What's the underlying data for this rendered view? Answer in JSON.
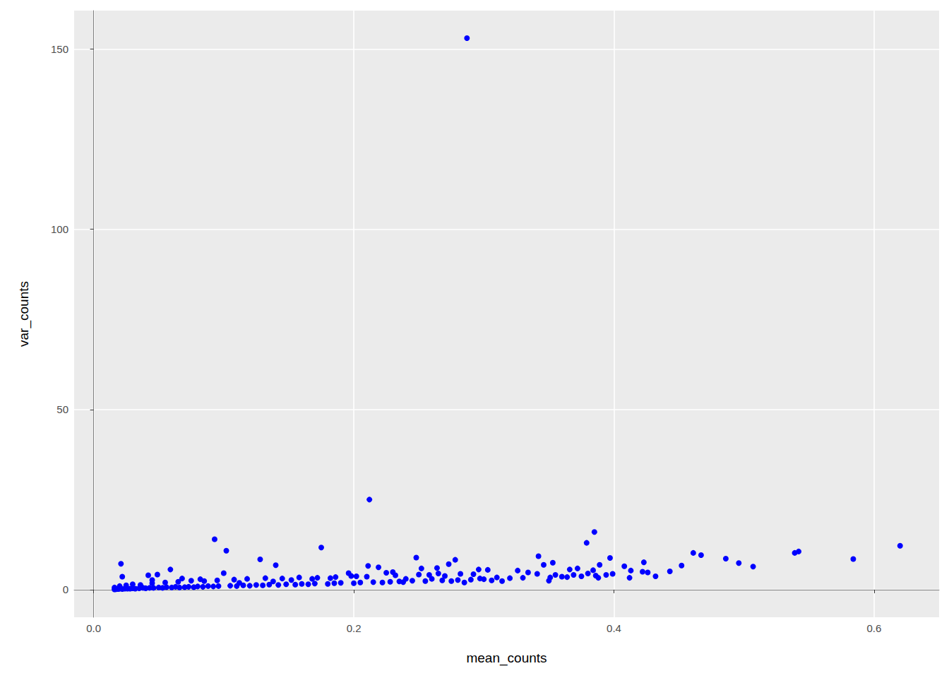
{
  "chart_data": {
    "type": "scatter",
    "x_label": "mean_counts",
    "y_label": "var_counts",
    "color": "#0000ff",
    "marker": "circle",
    "grid": true,
    "xlim": [
      -0.015,
      0.65
    ],
    "xticks": [
      {
        "value": 0,
        "label": "0.0"
      },
      0.2,
      0.4,
      0.6
    ],
    "ylim": [
      -7.65,
      160.65
    ],
    "yticks": [
      0,
      50,
      100,
      150
    ],
    "x": [
      0.287,
      0.212,
      0.385,
      0.093,
      0.379,
      0.62,
      0.175,
      0.102,
      0.542,
      0.539,
      0.461,
      0.467,
      0.342,
      0.397,
      0.248,
      0.486,
      0.584,
      0.278,
      0.128,
      0.496,
      0.423,
      0.021,
      0.14,
      0.507,
      0.452,
      0.389,
      0.211,
      0.273,
      0.219,
      0.408,
      0.353,
      0.346,
      0.059,
      0.264,
      0.296,
      0.303,
      0.252,
      0.372,
      0.366,
      0.384,
      0.422,
      0.413,
      0.326,
      0.334,
      0.443,
      0.1,
      0.196,
      0.049,
      0.042,
      0.022,
      0.341,
      0.355,
      0.394,
      0.399,
      0.412,
      0.432,
      0.426,
      0.375,
      0.36,
      0.364,
      0.33,
      0.31,
      0.306,
      0.314,
      0.32,
      0.35,
      0.351,
      0.388,
      0.386,
      0.369,
      0.38,
      0.297,
      0.29,
      0.285,
      0.282,
      0.27,
      0.26,
      0.24,
      0.23,
      0.225,
      0.245,
      0.235,
      0.25,
      0.265,
      0.275,
      0.016,
      0.017,
      0.018,
      0.019,
      0.02,
      0.022,
      0.024,
      0.026,
      0.028,
      0.03,
      0.032,
      0.035,
      0.038,
      0.04,
      0.043,
      0.046,
      0.05,
      0.053,
      0.056,
      0.06,
      0.063,
      0.066,
      0.07,
      0.073,
      0.077,
      0.08,
      0.084,
      0.088,
      0.092,
      0.096,
      0.105,
      0.11,
      0.115,
      0.12,
      0.125,
      0.13,
      0.135,
      0.142,
      0.148,
      0.155,
      0.16,
      0.165,
      0.17,
      0.18,
      0.185,
      0.19,
      0.2,
      0.205,
      0.215,
      0.222,
      0.228,
      0.238,
      0.255,
      0.268,
      0.28,
      0.3,
      0.016,
      0.02,
      0.025,
      0.03,
      0.036,
      0.045,
      0.055,
      0.065,
      0.075,
      0.085,
      0.095,
      0.108,
      0.118,
      0.132,
      0.145,
      0.158,
      0.172,
      0.186,
      0.198,
      0.21,
      0.232,
      0.258,
      0.292,
      0.045,
      0.068,
      0.082,
      0.112,
      0.138,
      0.152,
      0.168,
      0.182,
      0.202
    ],
    "values": [
      153,
      25,
      16,
      14,
      13,
      12.2,
      11.7,
      10.8,
      10.6,
      10.2,
      10.2,
      9.6,
      9.3,
      8.8,
      8.9,
      8.6,
      8.5,
      8.3,
      8.4,
      7.4,
      7.6,
      7.2,
      6.8,
      6.4,
      6.7,
      6.9,
      6.6,
      7.1,
      6.2,
      6.5,
      7.5,
      6.9,
      5.6,
      6,
      5.6,
      5.5,
      5.9,
      5.9,
      5.6,
      5.4,
      5,
      5.3,
      5.3,
      4.8,
      5.1,
      4.6,
      4.6,
      4.2,
      4,
      3.6,
      4.4,
      4.1,
      4.1,
      4.4,
      3.3,
      3.7,
      4.8,
      3.7,
      3.6,
      3.5,
      3.3,
      3.4,
      2.6,
      2.4,
      3.2,
      2.5,
      3.4,
      3.3,
      3.9,
      4.1,
      4.5,
      3.1,
      2.8,
      2,
      4.4,
      3.8,
      3,
      3,
      4.9,
      4.7,
      2.5,
      2.3,
      4.2,
      4.5,
      2.4,
      0.1,
      0.15,
      0.2,
      0.2,
      0.3,
      0.2,
      0.3,
      0.3,
      0.3,
      0.4,
      0.3,
      0.4,
      0.5,
      0.4,
      0.5,
      0.5,
      0.6,
      0.5,
      0.7,
      0.6,
      0.8,
      0.6,
      0.7,
      0.8,
      0.7,
      0.9,
      0.8,
      1,
      0.9,
      1,
      1.1,
      1,
      1.2,
      1.1,
      1.3,
      1.2,
      1.4,
      1.3,
      1.5,
      1.4,
      1.6,
      1.5,
      1.7,
      1.6,
      1.8,
      1.9,
      1.8,
      2,
      2.1,
      2,
      2.2,
      2.1,
      2.4,
      2.6,
      2.7,
      2.9,
      0.6,
      1,
      1.2,
      1.5,
      1.3,
      1.8,
      2,
      2.2,
      2.5,
      2.4,
      2.6,
      2.8,
      3,
      3.2,
      3.1,
      3.4,
      3.3,
      3.5,
      3.8,
      3.6,
      4,
      4.1,
      4.3,
      2.7,
      3.1,
      2.9,
      1.9,
      2.3,
      2.7,
      3,
      3.2,
      3.7
    ]
  }
}
